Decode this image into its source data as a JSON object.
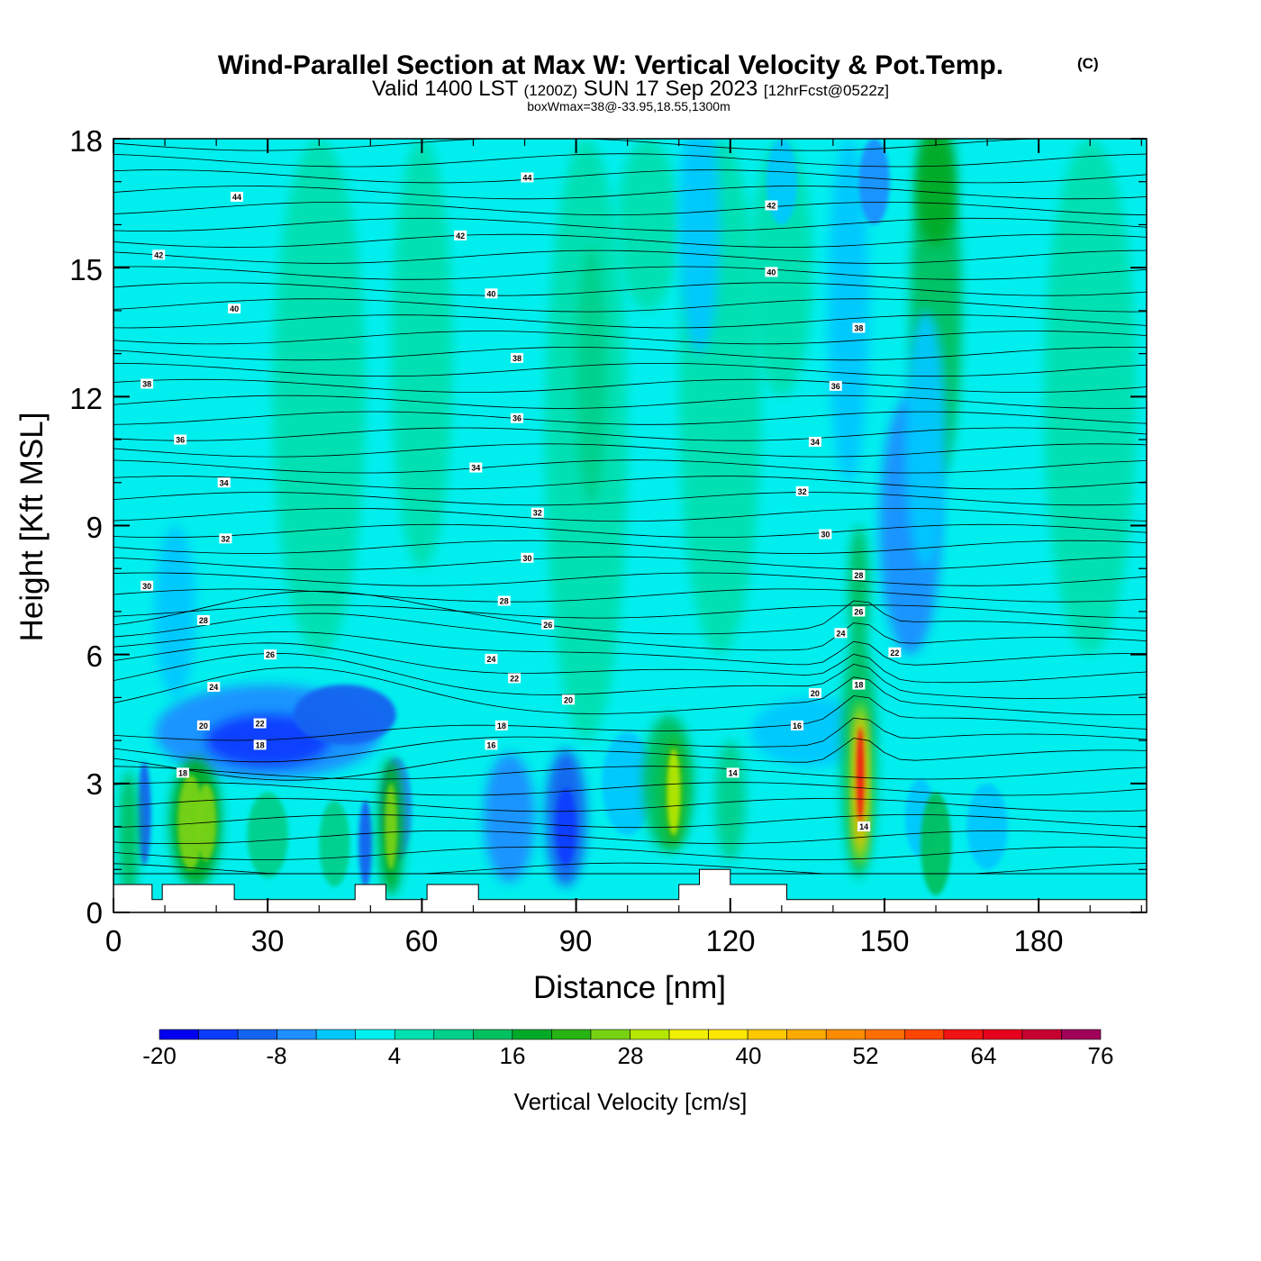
{
  "header": {
    "title": "Wind-Parallel Section at Max W: Vertical Velocity & Pot.Temp.",
    "title_mark": "(C)",
    "subtitle_a": "Valid 1400 LST",
    "subtitle_b": "(1200Z)",
    "subtitle_c": "SUN 17 Sep 2023",
    "subtitle_d": "[12hrFcst@0522z]",
    "subtitle_e": "boxWmax=38@-33.95,18.55,1300m"
  },
  "chart_data": {
    "type": "heatmap",
    "title": "Wind-Parallel Section at Max W: Vertical Velocity & Pot.Temp.",
    "xlabel": "Distance [nm]",
    "ylabel": "Height [Kft MSL]",
    "xlim": [
      0,
      201
    ],
    "ylim": [
      0,
      18
    ],
    "x_ticks": [
      "0",
      "30",
      "60",
      "90",
      "120",
      "150",
      "180"
    ],
    "y_ticks": [
      "0",
      "3",
      "6",
      "9",
      "12",
      "15",
      "18"
    ],
    "colorbar": {
      "title": "Vertical Velocity [cm/s]",
      "tick_labels": [
        "-20",
        "-8",
        "4",
        "16",
        "28",
        "40",
        "52",
        "64",
        "76"
      ],
      "levels": [
        -20,
        -16,
        -12,
        -8,
        -4,
        0,
        4,
        8,
        12,
        16,
        20,
        24,
        28,
        32,
        36,
        40,
        44,
        48,
        52,
        56,
        60,
        64,
        68,
        72,
        76
      ],
      "colors": [
        "#0000ee",
        "#0a3cff",
        "#1464f0",
        "#1e90ff",
        "#00c8ff",
        "#00f0f0",
        "#00e0b0",
        "#00d08c",
        "#00c060",
        "#00aa28",
        "#28b414",
        "#78d214",
        "#b4e600",
        "#f0f000",
        "#ffe600",
        "#ffc800",
        "#ffaa00",
        "#ff8c00",
        "#ff6e00",
        "#ff4600",
        "#f01414",
        "#e6001e",
        "#c80032",
        "#a0005a"
      ]
    },
    "contour_labels": [
      {
        "value": "44",
        "x": 24,
        "y": 16.65
      },
      {
        "value": "42",
        "x": 8.8,
        "y": 15.3
      },
      {
        "value": "40",
        "x": 23.5,
        "y": 14.05
      },
      {
        "value": "38",
        "x": 6.5,
        "y": 12.3
      },
      {
        "value": "36",
        "x": 13,
        "y": 11.0
      },
      {
        "value": "34",
        "x": 21.5,
        "y": 10.0
      },
      {
        "value": "32",
        "x": 21.8,
        "y": 8.7
      },
      {
        "value": "30",
        "x": 6.5,
        "y": 7.6
      },
      {
        "value": "28",
        "x": 17.5,
        "y": 6.8
      },
      {
        "value": "26",
        "x": 30.5,
        "y": 6.0
      },
      {
        "value": "24",
        "x": 19.5,
        "y": 5.25
      },
      {
        "value": "22",
        "x": 28.5,
        "y": 4.4
      },
      {
        "value": "20",
        "x": 17.5,
        "y": 4.35
      },
      {
        "value": "18",
        "x": 28.5,
        "y": 3.9
      },
      {
        "value": "18",
        "x": 13.5,
        "y": 3.25
      },
      {
        "value": "44",
        "x": 80.5,
        "y": 17.1
      },
      {
        "value": "42",
        "x": 67.5,
        "y": 15.75
      },
      {
        "value": "40",
        "x": 73.5,
        "y": 14.4
      },
      {
        "value": "38",
        "x": 78.5,
        "y": 12.9
      },
      {
        "value": "36",
        "x": 78.5,
        "y": 11.5
      },
      {
        "value": "34",
        "x": 70.5,
        "y": 10.35
      },
      {
        "value": "32",
        "x": 82.5,
        "y": 9.3
      },
      {
        "value": "30",
        "x": 80.5,
        "y": 8.25
      },
      {
        "value": "28",
        "x": 76,
        "y": 7.25
      },
      {
        "value": "26",
        "x": 84.5,
        "y": 6.7
      },
      {
        "value": "24",
        "x": 73.5,
        "y": 5.9
      },
      {
        "value": "22",
        "x": 78,
        "y": 5.45
      },
      {
        "value": "20",
        "x": 88.5,
        "y": 4.95
      },
      {
        "value": "18",
        "x": 75.5,
        "y": 4.35
      },
      {
        "value": "16",
        "x": 73.5,
        "y": 3.9
      },
      {
        "value": "14",
        "x": 120.5,
        "y": 3.25
      },
      {
        "value": "42",
        "x": 128,
        "y": 16.45
      },
      {
        "value": "40",
        "x": 128,
        "y": 14.9
      },
      {
        "value": "38",
        "x": 145,
        "y": 13.6
      },
      {
        "value": "36",
        "x": 140.5,
        "y": 12.25
      },
      {
        "value": "34",
        "x": 136.5,
        "y": 10.95
      },
      {
        "value": "32",
        "x": 134,
        "y": 9.8
      },
      {
        "value": "30",
        "x": 138.5,
        "y": 8.8
      },
      {
        "value": "28",
        "x": 145,
        "y": 7.85
      },
      {
        "value": "26",
        "x": 145,
        "y": 7.0
      },
      {
        "value": "24",
        "x": 141.5,
        "y": 6.5
      },
      {
        "value": "22",
        "x": 152,
        "y": 6.05
      },
      {
        "value": "20",
        "x": 136.5,
        "y": 5.1
      },
      {
        "value": "18",
        "x": 145,
        "y": 5.3
      },
      {
        "value": "16",
        "x": 133,
        "y": 4.35
      },
      {
        "value": "14",
        "x": 146,
        "y": 2.0
      }
    ]
  }
}
